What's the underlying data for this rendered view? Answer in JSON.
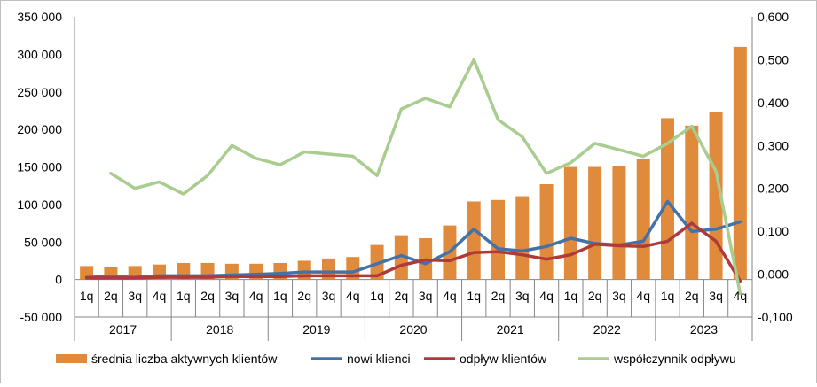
{
  "chart_data": {
    "type": "bar",
    "title": "",
    "xlabel": "",
    "ylabel": "",
    "categories": [
      "1q",
      "2q",
      "3q",
      "4q",
      "1q",
      "2q",
      "3q",
      "4q",
      "1q",
      "2q",
      "3q",
      "4q",
      "1q",
      "2q",
      "3q",
      "4q",
      "1q",
      "2q",
      "3q",
      "4q",
      "1q",
      "2q",
      "3q",
      "4q",
      "1q",
      "2q",
      "3q",
      "4q"
    ],
    "year_groups": [
      "2017",
      "2018",
      "2019",
      "2020",
      "2021",
      "2022",
      "2023"
    ],
    "y_left": {
      "ylim": [
        -50000,
        350000
      ],
      "tick_values": [
        -50000,
        0,
        50000,
        100000,
        150000,
        200000,
        250000,
        300000,
        350000
      ],
      "tick_labels": [
        "-50 000",
        "0",
        "50 000",
        "100 000",
        "150 000",
        "200 000",
        "250 000",
        "300 000",
        "350 000"
      ]
    },
    "y_right": {
      "ylim": [
        -0.1,
        0.6
      ],
      "tick_values": [
        -0.1,
        0.0,
        0.1,
        0.2,
        0.3,
        0.4,
        0.5,
        0.6
      ],
      "tick_labels": [
        "-0,100",
        "0,000",
        "0,100",
        "0,200",
        "0,300",
        "0,400",
        "0,500",
        "0,600"
      ]
    },
    "series": [
      {
        "name": "średnia liczba aktywnych klientów",
        "kind": "bar",
        "axis": "left",
        "color": "#E08A3C",
        "values": [
          18000,
          17000,
          18000,
          20000,
          22000,
          22000,
          21000,
          21000,
          22000,
          25000,
          28000,
          30000,
          46000,
          59000,
          55000,
          72000,
          104000,
          106000,
          111000,
          127000,
          150000,
          150000,
          151000,
          161000,
          215000,
          205000,
          223000,
          310000
        ]
      },
      {
        "name": "nowi klienci",
        "kind": "line",
        "axis": "left",
        "color": "#4472A8",
        "values": [
          3000,
          4000,
          3000,
          5000,
          5000,
          5000,
          6000,
          7000,
          8000,
          10000,
          10000,
          10000,
          21000,
          32000,
          21000,
          37000,
          67000,
          41000,
          38000,
          44000,
          55000,
          48000,
          46000,
          51000,
          104000,
          64000,
          67000,
          77000
        ]
      },
      {
        "name": "odpływ klientów",
        "kind": "line",
        "axis": "left",
        "color": "#B03A3A",
        "values": [
          2000,
          2000,
          2000,
          3000,
          3000,
          3000,
          4000,
          4000,
          4000,
          5000,
          5000,
          5000,
          5000,
          19000,
          26000,
          25000,
          36000,
          37000,
          33000,
          27000,
          33000,
          47000,
          45000,
          44000,
          51000,
          75000,
          51000,
          -2000
        ]
      },
      {
        "name": "współczynnik odpływu",
        "kind": "line",
        "axis": "right",
        "color": "#A9CC8F",
        "values": [
          null,
          0.235,
          0.2,
          0.215,
          0.187,
          0.23,
          0.3,
          0.27,
          0.255,
          0.285,
          0.28,
          0.275,
          0.23,
          0.385,
          0.41,
          0.39,
          0.5,
          0.36,
          0.32,
          0.235,
          0.26,
          0.305,
          0.29,
          0.275,
          0.305,
          0.345,
          0.24,
          -0.045
        ]
      }
    ],
    "legend_position": "bottom",
    "grid": false
  }
}
